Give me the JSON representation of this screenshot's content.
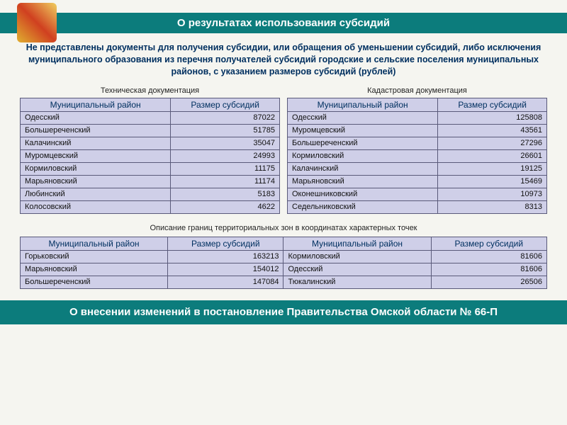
{
  "header": {
    "title": "О результатах использования субсидий"
  },
  "description": "Не представлены документы для получения субсидии, или обращения об уменьшении субсидий, либо исключения муниципального образования из перечня получателей субсидий городские и сельские поселения муниципальных районов, с указанием размеров субсидий (рублей)",
  "tables": {
    "col_district": "Муниципальный район",
    "col_value": "Размер субсидий",
    "tech": {
      "caption": "Техническая документация",
      "rows": [
        {
          "d": "Одесский",
          "v": "87022"
        },
        {
          "d": "Большереченский",
          "v": "51785"
        },
        {
          "d": "Калачинский",
          "v": "35047"
        },
        {
          "d": "Муромцевский",
          "v": "24993"
        },
        {
          "d": "Кормиловский",
          "v": "11175"
        },
        {
          "d": "Марьяновский",
          "v": "11174"
        },
        {
          "d": "Любинский",
          "v": "5183"
        },
        {
          "d": "Колосовский",
          "v": "4622"
        }
      ]
    },
    "cad": {
      "caption": "Кадастровая документация",
      "rows": [
        {
          "d": "Одесский",
          "v": "125808"
        },
        {
          "d": "Муромцевский",
          "v": "43561"
        },
        {
          "d": "Большереченский",
          "v": "27296"
        },
        {
          "d": "Кормиловский",
          "v": "26601"
        },
        {
          "d": "Калачинский",
          "v": "19125"
        },
        {
          "d": "Марьяновский",
          "v": "15469"
        },
        {
          "d": "Оконешниковский",
          "v": "10973"
        },
        {
          "d": "Седельниковский",
          "v": "8313"
        }
      ]
    },
    "zones": {
      "caption": "Описание границ территориальных зон в координатах характерных точек",
      "rows": [
        {
          "d1": "Горьковский",
          "v1": "163213",
          "d2": "Кормиловский",
          "v2": "81606"
        },
        {
          "d1": "Марьяновский",
          "v1": "154012",
          "d2": "Одесский",
          "v2": "81606"
        },
        {
          "d1": "Большереченский",
          "v1": "147084",
          "d2": "Тюкалинский",
          "v2": "26506"
        }
      ]
    }
  },
  "footer": {
    "title": "О внесении изменений в постановление Правительства Омской области № 66-П"
  },
  "style": {
    "banner_bg": "#0c7c7c",
    "banner_fg": "#ffffff",
    "desc_color": "#003060",
    "table_bg": "#cfcfe8",
    "border_color": "#5a5a7a"
  }
}
